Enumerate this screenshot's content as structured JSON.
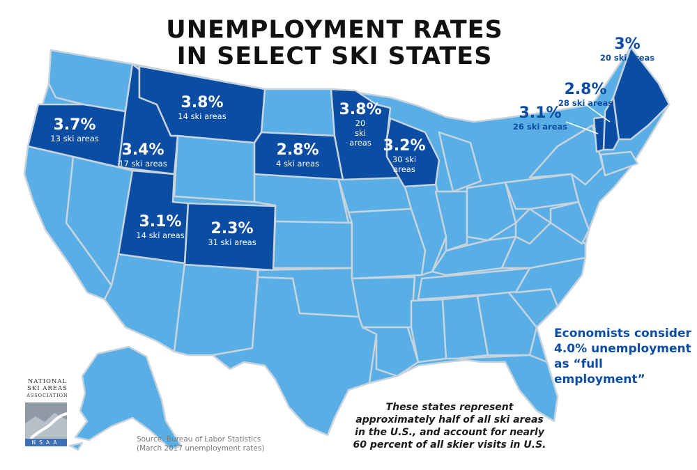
{
  "title": {
    "line1": "UNEMPLOYMENT RATES",
    "line2": "IN SELECT SKI STATES"
  },
  "colors": {
    "highlight": "#0b4da2",
    "other_state": "#5aaee6",
    "border": "#c7d4de",
    "text_accent": "#0b4da2"
  },
  "states": {
    "oregon": {
      "rate": "3.7%",
      "areas": "13 ski areas"
    },
    "idaho": {
      "rate": "3.4%",
      "areas": "17 ski areas"
    },
    "montana": {
      "rate": "3.8%",
      "areas": "14 ski areas"
    },
    "south_dakota": {
      "rate": "2.8%",
      "areas": "4 ski areas"
    },
    "minnesota": {
      "rate": "3.8%",
      "areas1": "20",
      "areas2": "ski",
      "areas3": "areas"
    },
    "wisconsin": {
      "rate": "3.2%",
      "areas1": "30 ski",
      "areas2": "areas"
    },
    "utah": {
      "rate": "3.1%",
      "areas": "14 ski areas"
    },
    "colorado": {
      "rate": "2.3%",
      "areas": "31 ski areas"
    },
    "maine": {
      "rate": "3%",
      "areas": "20 ski areas"
    },
    "new_hampshire": {
      "rate": "2.8%",
      "areas": "28 ski areas"
    },
    "vermont": {
      "rate": "3.1%",
      "areas": "26 ski areas"
    }
  },
  "economists": {
    "line1": "Economists consider",
    "line2": "4.0% unemployment",
    "line3": "as “full employment”"
  },
  "note": {
    "line1": "These states represent",
    "line2": "approximately half of all ski areas",
    "line3": "in the U.S., and account for nearly",
    "line4": "60 percent of all skier visits in U.S."
  },
  "source": {
    "line1": "Source: Bureau of Labor Statistics",
    "line2": "(March 2017 unemployment rates)"
  },
  "logo": {
    "line1": "NATIONAL",
    "line2": "SKI AREAS",
    "line3": "ASSOCIATION",
    "abbr": "NSAA"
  }
}
